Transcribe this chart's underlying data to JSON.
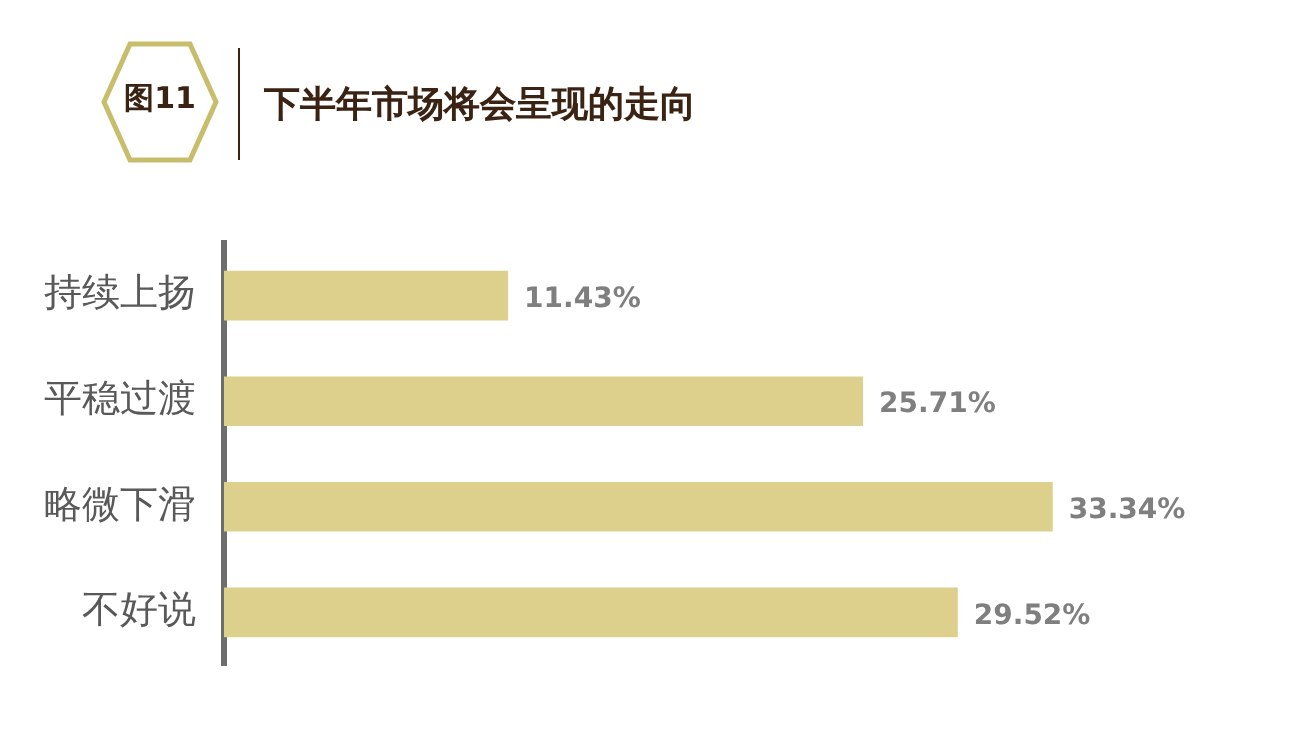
{
  "chart_data": {
    "type": "bar",
    "orientation": "horizontal",
    "title": "下半年市场将会呈现的走向",
    "annotations": [
      "图11"
    ],
    "categories": [
      "持续上扬",
      "平稳过渡",
      "略微下滑",
      "不好说"
    ],
    "values": [
      11.43,
      25.71,
      33.34,
      29.52
    ],
    "value_labels": [
      "11.43%",
      "25.71%",
      "33.34%",
      "29.52%"
    ],
    "color": "#ddd08c",
    "grid": false,
    "legend": false
  }
}
